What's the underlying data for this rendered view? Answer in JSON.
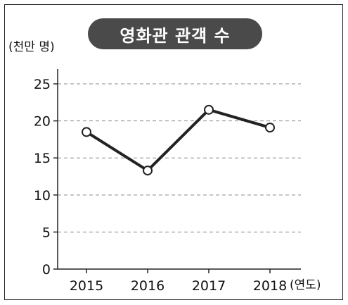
{
  "chart_data": {
    "type": "line",
    "title": "영화관 관객 수",
    "ylabel": "(천만 명)",
    "xlabel": "(연도)",
    "categories": [
      "2015",
      "2016",
      "2017",
      "2018"
    ],
    "series": [
      {
        "values": [
          18.5,
          13.3,
          21.5,
          19.1
        ]
      }
    ],
    "ylim": [
      0,
      27
    ],
    "yticks": [
      0,
      5,
      10,
      15,
      20,
      25
    ],
    "grid": true,
    "colors": {
      "line": "#222222",
      "grid": "#888888",
      "marker_fill": "#ffffff"
    }
  }
}
